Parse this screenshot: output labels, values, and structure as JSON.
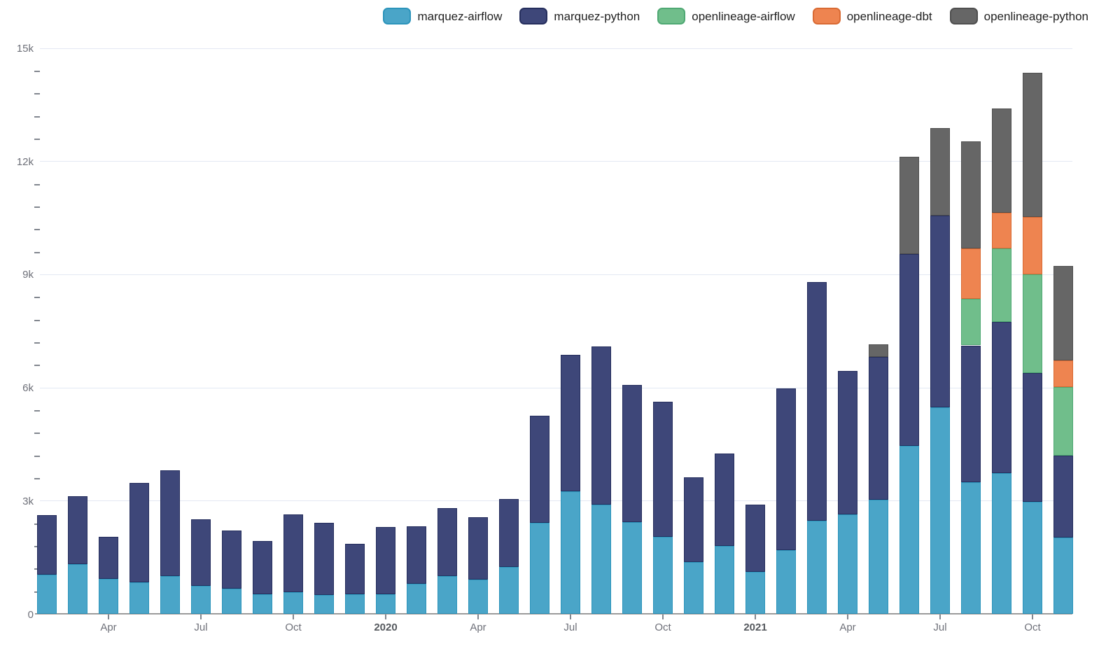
{
  "legend": {
    "items": [
      {
        "name": "marquez-airflow",
        "label": "marquez-airflow",
        "color": "#4aa5c8",
        "border": "#2c94bb"
      },
      {
        "name": "marquez-python",
        "label": "marquez-python",
        "color": "#3e4779",
        "border": "#252e5d"
      },
      {
        "name": "openlineage-airflow",
        "label": "openlineage-airflow",
        "color": "#70be8b",
        "border": "#4fa873"
      },
      {
        "name": "openlineage-dbt",
        "label": "openlineage-dbt",
        "color": "#ee8450",
        "border": "#d96a33"
      },
      {
        "name": "openlineage-python",
        "label": "openlineage-python",
        "color": "#666666",
        "border": "#4f4f4f"
      }
    ]
  },
  "y_axis": {
    "tick_labels": [
      "0",
      "3k",
      "6k",
      "9k",
      "12k",
      "15k"
    ],
    "major_step": 3000,
    "minor_step": 600,
    "max": 15000
  },
  "x_axis": {
    "ticks": [
      {
        "index": 2,
        "label": "Apr",
        "bold": false
      },
      {
        "index": 5,
        "label": "Jul",
        "bold": false
      },
      {
        "index": 8,
        "label": "Oct",
        "bold": false
      },
      {
        "index": 11,
        "label": "2020",
        "bold": true
      },
      {
        "index": 14,
        "label": "Apr",
        "bold": false
      },
      {
        "index": 17,
        "label": "Jul",
        "bold": false
      },
      {
        "index": 20,
        "label": "Oct",
        "bold": false
      },
      {
        "index": 23,
        "label": "2021",
        "bold": true
      },
      {
        "index": 26,
        "label": "Apr",
        "bold": false
      },
      {
        "index": 29,
        "label": "Jul",
        "bold": false
      },
      {
        "index": 32,
        "label": "Oct",
        "bold": false
      }
    ]
  },
  "chart_data": {
    "type": "bar",
    "stacked": true,
    "title": "",
    "xlabel": "",
    "ylabel": "",
    "ylim": [
      0,
      15000
    ],
    "grid": true,
    "legend_position": "top",
    "categories": [
      "Feb 2019",
      "Mar 2019",
      "Apr 2019",
      "May 2019",
      "Jun 2019",
      "Jul 2019",
      "Aug 2019",
      "Sep 2019",
      "Oct 2019",
      "Nov 2019",
      "Dec 2019",
      "Jan 2020",
      "Feb 2020",
      "Mar 2020",
      "Apr 2020",
      "May 2020",
      "Jun 2020",
      "Jul 2020",
      "Aug 2020",
      "Sep 2020",
      "Oct 2020",
      "Nov 2020",
      "Dec 2020",
      "Jan 2021",
      "Feb 2021",
      "Mar 2021",
      "Apr 2021",
      "May 2021",
      "Jun 2021",
      "Jul 2021",
      "Aug 2021",
      "Sep 2021",
      "Oct 2021",
      "Nov 2021"
    ],
    "series": [
      {
        "name": "marquez-airflow",
        "color": "#4aa5c8",
        "border": "#2c94bb",
        "values": [
          1040,
          1320,
          920,
          835,
          1000,
          750,
          660,
          520,
          575,
          500,
          515,
          515,
          805,
          1000,
          915,
          1240,
          2420,
          3240,
          2895,
          2430,
          2035,
          1370,
          1795,
          1110,
          1690,
          2470,
          2640,
          3020,
          4445,
          5465,
          3485,
          3720,
          2960,
          2020
        ]
      },
      {
        "name": "marquez-python",
        "color": "#3e4779",
        "border": "#252e5d",
        "values": [
          1570,
          1795,
          1120,
          2635,
          2800,
          1755,
          1555,
          1415,
          2055,
          1915,
          1340,
          1780,
          1510,
          1805,
          1640,
          1800,
          2825,
          3630,
          4185,
          3635,
          3590,
          2240,
          2450,
          1775,
          4285,
          6320,
          3800,
          3785,
          5085,
          5095,
          3630,
          4015,
          3430,
          2170
        ]
      },
      {
        "name": "openlineage-airflow",
        "color": "#70be8b",
        "border": "#4fa873",
        "values": [
          0,
          0,
          0,
          0,
          0,
          0,
          0,
          0,
          0,
          0,
          0,
          0,
          0,
          0,
          0,
          0,
          0,
          0,
          0,
          0,
          0,
          0,
          0,
          0,
          0,
          0,
          0,
          0,
          0,
          0,
          1225,
          1955,
          2610,
          1830
        ]
      },
      {
        "name": "openlineage-dbt",
        "color": "#ee8450",
        "border": "#d96a33",
        "values": [
          0,
          0,
          0,
          0,
          0,
          0,
          0,
          0,
          0,
          0,
          0,
          0,
          0,
          0,
          0,
          0,
          0,
          0,
          0,
          0,
          0,
          0,
          0,
          0,
          0,
          0,
          0,
          0,
          0,
          0,
          1340,
          940,
          1520,
          700
        ]
      },
      {
        "name": "openlineage-python",
        "color": "#666666",
        "border": "#4f4f4f",
        "values": [
          0,
          0,
          0,
          0,
          0,
          0,
          0,
          0,
          0,
          0,
          0,
          0,
          0,
          0,
          0,
          0,
          0,
          0,
          0,
          0,
          0,
          0,
          0,
          0,
          0,
          0,
          0,
          340,
          2590,
          2320,
          2835,
          2760,
          3830,
          2500
        ]
      }
    ]
  }
}
